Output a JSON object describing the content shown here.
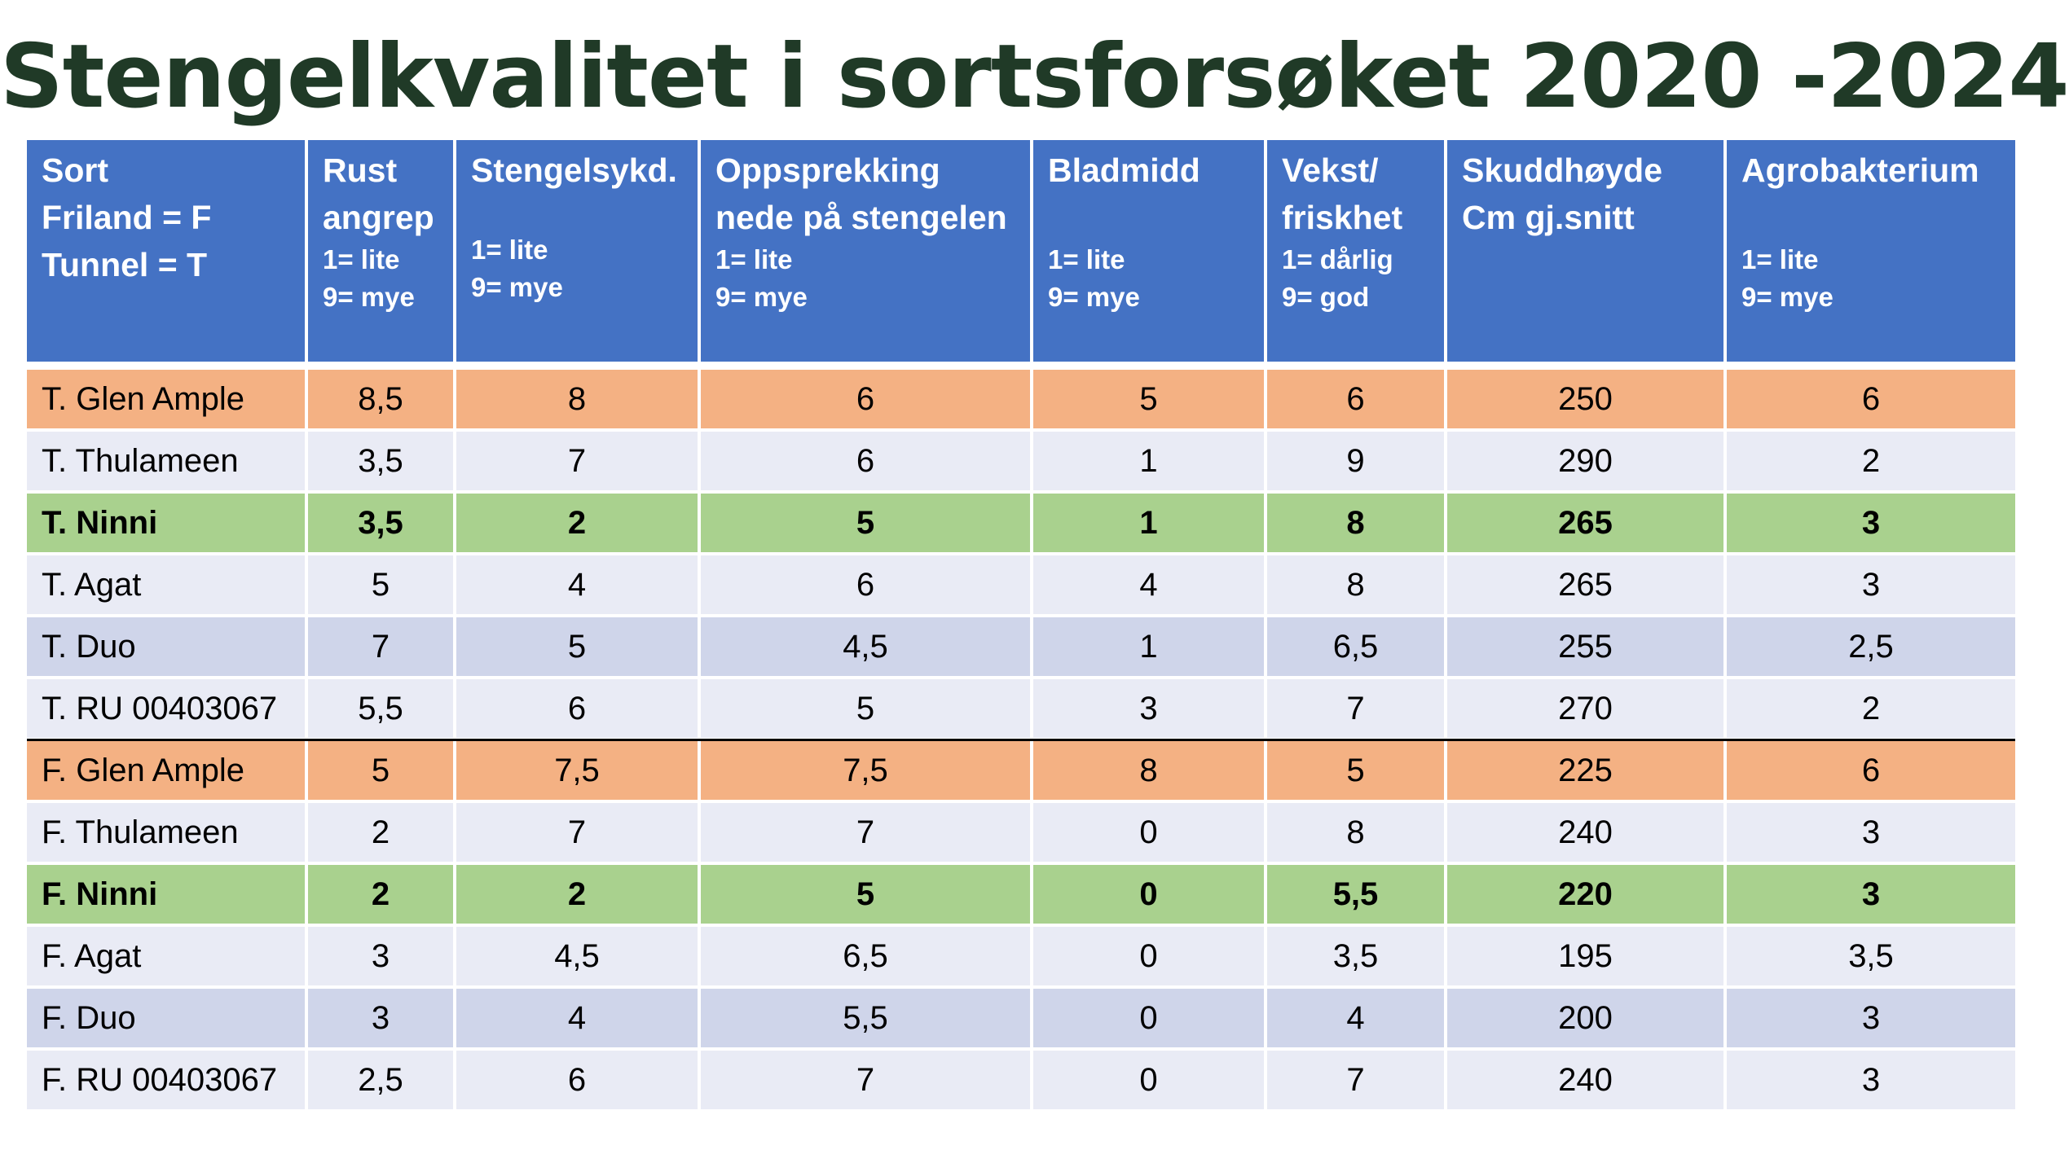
{
  "title": "Stengelkvalitet i sortsforsøket 2020 -2024",
  "colors": {
    "title": "#203a27",
    "header": "#4472c4",
    "glen_ample_row": "#f4b183",
    "ninni_row": "#a9d18e",
    "light_row": "#e9ebf5",
    "mid_row": "#cfd5ea"
  },
  "table": {
    "headers": [
      {
        "main": [
          "Sort",
          "Friland = F",
          "Tunnel = T"
        ],
        "sub": []
      },
      {
        "main": [
          "Rust",
          "angrep"
        ],
        "sub": [
          "1= lite",
          "9= mye"
        ]
      },
      {
        "main": [
          "Stengelsykd."
        ],
        "sub": [
          "",
          "1= lite",
          "9= mye"
        ]
      },
      {
        "main": [
          "Oppsprekking",
          "nede på stengelen"
        ],
        "sub": [
          "1= lite",
          "9= mye"
        ]
      },
      {
        "main": [
          "Bladmidd"
        ],
        "sub": [
          "",
          "1= lite",
          "9= mye"
        ]
      },
      {
        "main": [
          "Vekst/",
          "friskhet"
        ],
        "sub": [
          "1= dårlig",
          "9= god"
        ]
      },
      {
        "main": [
          "Skuddhøyde",
          "Cm gj.snitt"
        ],
        "sub": []
      },
      {
        "main": [
          "Agrobakterium"
        ],
        "sub": [
          "",
          "1= lite",
          "9= mye"
        ]
      }
    ],
    "rows": [
      {
        "style": "orange",
        "bold": false,
        "sep": false,
        "cells": [
          "T. Glen Ample",
          "8,5",
          "8",
          "6",
          "5",
          "6",
          "250",
          "6"
        ]
      },
      {
        "style": "light",
        "bold": false,
        "sep": false,
        "cells": [
          "T. Thulameen",
          "3,5",
          "7",
          "6",
          "1",
          "9",
          "290",
          "2"
        ]
      },
      {
        "style": "green",
        "bold": true,
        "sep": false,
        "cells": [
          "T. Ninni",
          "3,5",
          "2",
          "5",
          "1",
          "8",
          "265",
          "3"
        ]
      },
      {
        "style": "light",
        "bold": false,
        "sep": false,
        "cells": [
          "T. Agat",
          "5",
          "4",
          "6",
          "4",
          "8",
          "265",
          "3"
        ]
      },
      {
        "style": "mid",
        "bold": false,
        "sep": false,
        "cells": [
          "T. Duo",
          "7",
          "5",
          "4,5",
          "1",
          "6,5",
          "255",
          "2,5"
        ]
      },
      {
        "style": "light",
        "bold": false,
        "sep": false,
        "cells": [
          "T. RU 00403067",
          "5,5",
          "6",
          "5",
          "3",
          "7",
          "270",
          "2"
        ]
      },
      {
        "style": "orange",
        "bold": false,
        "sep": true,
        "cells": [
          "F. Glen Ample",
          "5",
          "7,5",
          "7,5",
          "8",
          "5",
          "225",
          "6"
        ]
      },
      {
        "style": "light",
        "bold": false,
        "sep": false,
        "cells": [
          "F. Thulameen",
          "2",
          "7",
          "7",
          "0",
          "8",
          "240",
          "3"
        ]
      },
      {
        "style": "green",
        "bold": true,
        "sep": false,
        "cells": [
          "F. Ninni",
          "2",
          "2",
          "5",
          "0",
          "5,5",
          "220",
          "3"
        ]
      },
      {
        "style": "light",
        "bold": false,
        "sep": false,
        "cells": [
          "F. Agat",
          "3",
          "4,5",
          "6,5",
          "0",
          "3,5",
          "195",
          "3,5"
        ]
      },
      {
        "style": "mid",
        "bold": false,
        "sep": false,
        "cells": [
          "F. Duo",
          "3",
          "4",
          "5,5",
          "0",
          "4",
          "200",
          "3"
        ]
      },
      {
        "style": "light",
        "bold": false,
        "sep": false,
        "cells": [
          "F. RU 00403067",
          "2,5",
          "6",
          "7",
          "0",
          "7",
          "240",
          "3"
        ]
      }
    ]
  }
}
